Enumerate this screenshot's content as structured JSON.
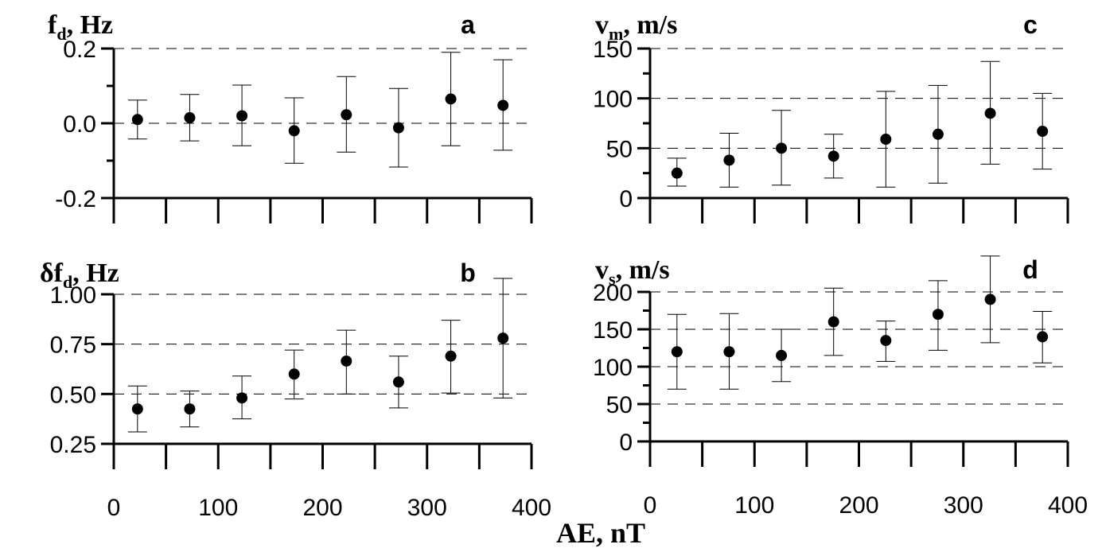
{
  "xlabel": "AE, nT",
  "chart_data": [
    {
      "id": "a",
      "type": "scatter",
      "panel_label": "a",
      "ylabel": {
        "main": "f",
        "sub": "d",
        "rest": ", Hz"
      },
      "x": [
        25,
        75,
        125,
        175,
        225,
        275,
        325,
        375
      ],
      "y": [
        0.01,
        0.015,
        0.02,
        -0.02,
        0.023,
        -0.012,
        0.065,
        0.048
      ],
      "y_low": [
        -0.042,
        -0.047,
        -0.06,
        -0.107,
        -0.077,
        -0.117,
        -0.06,
        -0.072
      ],
      "y_high": [
        0.062,
        0.077,
        0.102,
        0.068,
        0.125,
        0.093,
        0.19,
        0.17
      ],
      "xlim": [
        0,
        400
      ],
      "ylim": [
        -0.2,
        0.2
      ],
      "yticks": [
        -0.2,
        0.0,
        0.2
      ],
      "ytick_labels": [
        "-0.2",
        "0.0",
        "0.2"
      ],
      "minor_yticks": [
        -0.1,
        0.1
      ],
      "grid_y": [
        0.0,
        0.2
      ],
      "xtick_labels_shown": false
    },
    {
      "id": "b",
      "type": "scatter",
      "panel_label": "b",
      "ylabel": {
        "main": "δf",
        "sub": "d",
        "rest": ", Hz"
      },
      "x": [
        25,
        75,
        125,
        175,
        225,
        275,
        325,
        375
      ],
      "y": [
        0.425,
        0.425,
        0.48,
        0.6,
        0.665,
        0.56,
        0.69,
        0.78
      ],
      "y_low": [
        0.31,
        0.335,
        0.375,
        0.475,
        0.5,
        0.43,
        0.505,
        0.48
      ],
      "y_high": [
        0.54,
        0.515,
        0.59,
        0.72,
        0.82,
        0.69,
        0.87,
        1.08
      ],
      "xlim": [
        0,
        400
      ],
      "ylim": [
        0.25,
        1.0
      ],
      "yticks": [
        0.25,
        0.5,
        0.75,
        1.0
      ],
      "ytick_labels": [
        "0.25",
        "0.50",
        "0.75",
        "1.00"
      ],
      "minor_yticks": [],
      "grid_y": [
        0.5,
        0.75,
        1.0
      ],
      "xticks": [
        0,
        100,
        200,
        300,
        400
      ],
      "xtick_labels": [
        "0",
        "100",
        "200",
        "300",
        "400"
      ],
      "xtick_labels_shown": true
    },
    {
      "id": "c",
      "type": "scatter",
      "panel_label": "c",
      "ylabel": {
        "main": "v",
        "sub": "m",
        "rest": ", m/s"
      },
      "x": [
        25,
        75,
        125,
        175,
        225,
        275,
        325,
        375
      ],
      "y": [
        25,
        38,
        50,
        42,
        59,
        64,
        85,
        67
      ],
      "y_low": [
        12,
        11,
        13,
        20,
        11,
        15,
        34,
        29
      ],
      "y_high": [
        40,
        65,
        88,
        64,
        107,
        113,
        137,
        105
      ],
      "xlim": [
        0,
        400
      ],
      "ylim": [
        0,
        150
      ],
      "yticks": [
        0,
        50,
        100,
        150
      ],
      "ytick_labels": [
        "0",
        "50",
        "100",
        "150"
      ],
      "minor_yticks": [
        25,
        75,
        125
      ],
      "grid_y": [
        50,
        100,
        150
      ],
      "xtick_labels_shown": false
    },
    {
      "id": "d",
      "type": "scatter",
      "panel_label": "d",
      "ylabel": {
        "main": "v",
        "sub": "s",
        "rest": ", m/s"
      },
      "x": [
        25,
        75,
        125,
        175,
        225,
        275,
        325,
        375
      ],
      "y": [
        120,
        120,
        115,
        160,
        135,
        170,
        190,
        140
      ],
      "y_low": [
        70,
        70,
        80,
        115,
        107,
        122,
        132,
        105
      ],
      "y_high": [
        170,
        171,
        150,
        205,
        161,
        215,
        248,
        174
      ],
      "xlim": [
        0,
        400
      ],
      "ylim": [
        0,
        200
      ],
      "yticks": [
        0,
        50,
        100,
        150,
        200
      ],
      "ytick_labels": [
        "0",
        "50",
        "100",
        "150",
        "200"
      ],
      "minor_yticks": [
        25,
        75,
        125,
        175
      ],
      "grid_y": [
        50,
        100,
        150,
        200
      ],
      "xticks": [
        0,
        100,
        200,
        300,
        400
      ],
      "xtick_labels": [
        "0",
        "100",
        "200",
        "300",
        "400"
      ],
      "xtick_labels_shown": true
    }
  ]
}
